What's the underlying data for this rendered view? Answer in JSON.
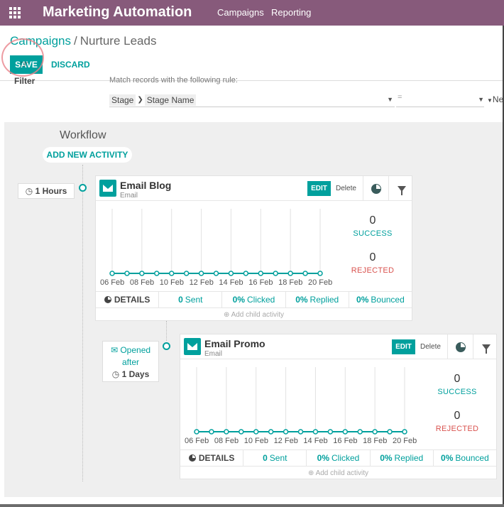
{
  "navbar": {
    "app_name": "Marketing Automation",
    "menu": [
      "Campaigns",
      "Reporting"
    ]
  },
  "breadcrumb": {
    "parent": "Campaigns",
    "separator": "/",
    "current": "Nurture Leads"
  },
  "buttons": {
    "save": "SAVE",
    "discard": "DISCARD"
  },
  "filter": {
    "label": "Filter",
    "hint": "Match records with the following rule:",
    "field_path": [
      "Stage",
      "Stage Name"
    ],
    "operator": "=",
    "value": "New"
  },
  "workflow": {
    "title": "Workflow",
    "add_activity": "ADD NEW ACTIVITY"
  },
  "activities": [
    {
      "trigger_line1": "",
      "trigger_line2": "",
      "trigger_delay": "1 Hours",
      "title": "Email Blog",
      "subtitle": "Email",
      "edit": "EDIT",
      "delete": "Delete",
      "x_ticks": [
        "06 Feb",
        "08 Feb",
        "10 Feb",
        "12 Feb",
        "14 Feb",
        "16 Feb",
        "18 Feb",
        "20 Feb"
      ],
      "success_count": "0",
      "success_label": "SUCCESS",
      "rejected_count": "0",
      "rejected_label": "REJECTED",
      "details": "DETAILS",
      "sent": {
        "pct": "0",
        "label": "Sent"
      },
      "clicked": {
        "pct": "0%",
        "label": "Clicked"
      },
      "replied": {
        "pct": "0%",
        "label": "Replied"
      },
      "bounced": {
        "pct": "0%",
        "label": "Bounced"
      },
      "add_child": "Add child activity"
    },
    {
      "trigger_line1": "Opened",
      "trigger_line2": "after",
      "trigger_delay": "1 Days",
      "title": "Email Promo",
      "subtitle": "Email",
      "edit": "EDIT",
      "delete": "Delete",
      "x_ticks": [
        "06 Feb",
        "08 Feb",
        "10 Feb",
        "12 Feb",
        "14 Feb",
        "16 Feb",
        "18 Feb",
        "20 Feb"
      ],
      "success_count": "0",
      "success_label": "SUCCESS",
      "rejected_count": "0",
      "rejected_label": "REJECTED",
      "details": "DETAILS",
      "sent": {
        "pct": "0",
        "label": "Sent"
      },
      "clicked": {
        "pct": "0%",
        "label": "Clicked"
      },
      "replied": {
        "pct": "0%",
        "label": "Replied"
      },
      "bounced": {
        "pct": "0%",
        "label": "Bounced"
      },
      "add_child": "Add child activity"
    }
  ],
  "chart_data": [
    {
      "type": "line",
      "series": [
        {
          "values": [
            0,
            0,
            0,
            0,
            0,
            0,
            0,
            0,
            0,
            0,
            0,
            0,
            0,
            0,
            0
          ]
        }
      ],
      "x_labels": [
        "06 Feb",
        "08 Feb",
        "10 Feb",
        "12 Feb",
        "14 Feb",
        "16 Feb",
        "18 Feb",
        "20 Feb"
      ]
    },
    {
      "type": "line",
      "series": [
        {
          "values": [
            0,
            0,
            0,
            0,
            0,
            0,
            0,
            0,
            0,
            0,
            0,
            0,
            0,
            0,
            0
          ]
        }
      ],
      "x_labels": [
        "06 Feb",
        "08 Feb",
        "10 Feb",
        "12 Feb",
        "14 Feb",
        "16 Feb",
        "18 Feb",
        "20 Feb"
      ]
    }
  ],
  "colors": {
    "navbar": "#875a7b",
    "accent": "#00a09d",
    "rejected": "#d9534f"
  }
}
